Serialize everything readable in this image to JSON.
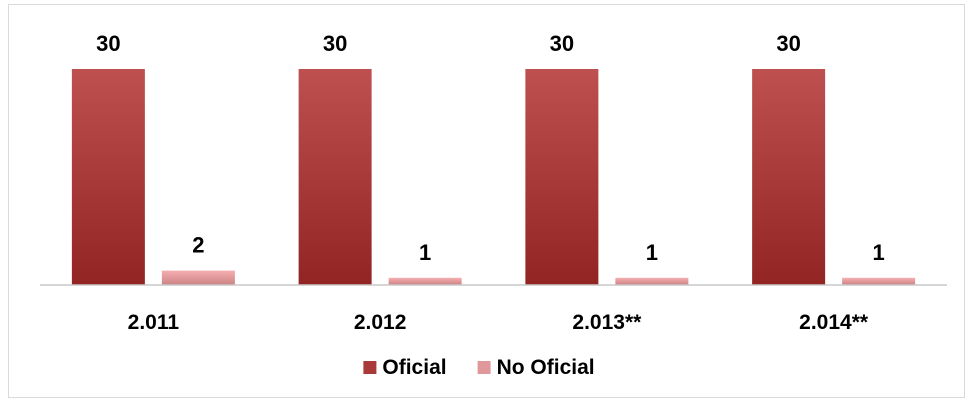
{
  "chart_data": {
    "type": "bar",
    "title": "",
    "xlabel": "",
    "ylabel": "",
    "categories": [
      "2.011",
      "2.012",
      "2.013**",
      "2.014**"
    ],
    "series": [
      {
        "name": "Oficial",
        "values": [
          30,
          30,
          30,
          30
        ],
        "color": "#a83a3a"
      },
      {
        "name": "No Oficial",
        "values": [
          2,
          1,
          1,
          1
        ],
        "color": "#e0989a"
      }
    ],
    "ylim": [
      0,
      30
    ],
    "grid": false,
    "legend_position": "bottom",
    "data_labels": true,
    "baseline_color": "#c8c8c8"
  }
}
